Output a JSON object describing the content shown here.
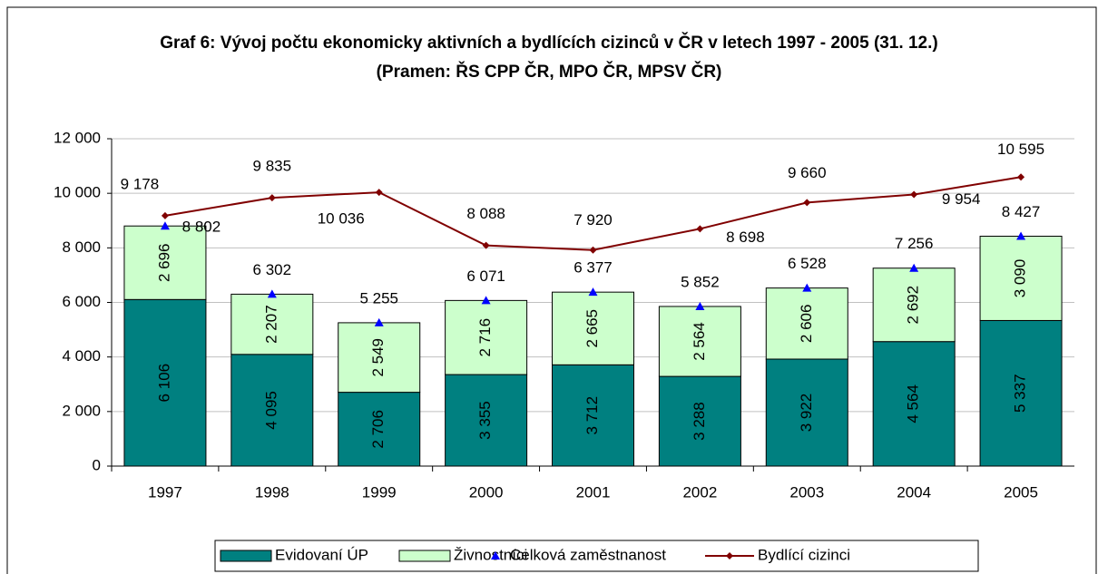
{
  "chart_data": {
    "type": "bar",
    "stacked": true,
    "title": "Graf 6: Vývoj počtu ekonomicky aktivních a bydlících cizinců v ČR v letech 1997 - 2005 (31. 12.) (Pramen: ŘS CPP ČR, MPO ČR, MPSV ČR)",
    "categories": [
      "1997",
      "1998",
      "1999",
      "2000",
      "2001",
      "2002",
      "2003",
      "2004",
      "2005"
    ],
    "ylim": [
      0,
      12000
    ],
    "yticks": [
      0,
      {
        "value": 2000,
        "label": "2 000"
      },
      {
        "value": 4000,
        "label": "4 000"
      },
      {
        "value": 6000,
        "label": "6 000"
      },
      {
        "value": 8000,
        "label": "8 000"
      },
      {
        "value": 10000,
        "label": "10 000"
      },
      {
        "value": 12000,
        "label": "12 000"
      }
    ],
    "grid": true,
    "legend": "bottom",
    "series": [
      {
        "name": "Evidovaní ÚP",
        "type": "bar",
        "color": "#008080",
        "values": [
          6106,
          4095,
          2706,
          3355,
          3712,
          3288,
          3922,
          4564,
          5337
        ],
        "value_labels": [
          "6 106",
          "4 095",
          "2 706",
          "3 355",
          "3 712",
          "3 288",
          "3 922",
          "4 564",
          "5 337"
        ]
      },
      {
        "name": "Živnostníci",
        "type": "bar",
        "color": "#ccffcc",
        "values": [
          2696,
          2207,
          2549,
          2716,
          2665,
          2564,
          2606,
          2692,
          3090
        ],
        "value_labels": [
          "2 696",
          "2 207",
          "2 549",
          "2 716",
          "2 665",
          "2 564",
          "2 606",
          "2 692",
          "3 090"
        ]
      },
      {
        "name": "Celková zaměstnanost",
        "type": "scatter",
        "color": "#0000ff",
        "values": [
          8802,
          6302,
          5255,
          6071,
          6377,
          5852,
          6528,
          7256,
          8427
        ],
        "value_labels": [
          "8 802",
          "6 302",
          "5 255",
          "6 071",
          "6 377",
          "5 852",
          "6 528",
          "7 256",
          "8 427"
        ]
      },
      {
        "name": "Bydlící cizinci",
        "type": "line",
        "color": "#800000",
        "values": [
          9178,
          9835,
          10036,
          8088,
          7920,
          8698,
          9660,
          9954,
          10595
        ],
        "value_labels": [
          "9 178",
          "9 835",
          "10 036",
          "8 088",
          "7 920",
          "8 698",
          "9 660",
          "9 954",
          "10 595"
        ]
      }
    ]
  }
}
